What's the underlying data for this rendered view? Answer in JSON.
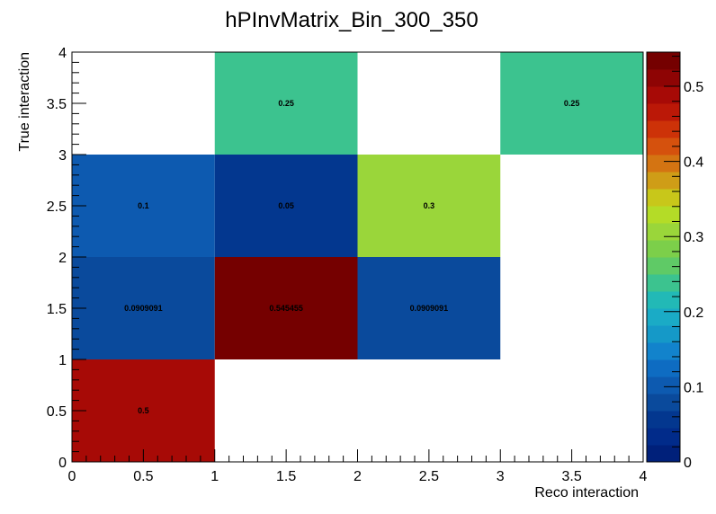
{
  "chart_data": {
    "type": "heatmap",
    "title": "hPInvMatrix_Bin_300_350",
    "xlabel": "Reco interaction",
    "ylabel": "True interaction",
    "xlim": [
      0,
      4
    ],
    "ylim": [
      0,
      4
    ],
    "x_ticks": [
      "0",
      "0.5",
      "1",
      "1.5",
      "2",
      "2.5",
      "3",
      "3.5",
      "4"
    ],
    "y_ticks": [
      "0",
      "0.5",
      "1",
      "1.5",
      "2",
      "2.5",
      "3",
      "3.5",
      "4"
    ],
    "z_range": [
      0,
      0.545455
    ],
    "colorbar_ticks": [
      "0",
      "0.1",
      "0.2",
      "0.3",
      "0.4",
      "0.5"
    ],
    "cells": [
      {
        "x": [
          0,
          1
        ],
        "y": [
          0,
          1
        ],
        "value": 0.5,
        "label": "0.5"
      },
      {
        "x": [
          0,
          1
        ],
        "y": [
          1,
          2
        ],
        "value": 0.0909091,
        "label": "0.0909091"
      },
      {
        "x": [
          1,
          2
        ],
        "y": [
          1,
          2
        ],
        "value": 0.545455,
        "label": "0.545455"
      },
      {
        "x": [
          2,
          3
        ],
        "y": [
          1,
          2
        ],
        "value": 0.0909091,
        "label": "0.0909091"
      },
      {
        "x": [
          0,
          1
        ],
        "y": [
          2,
          3
        ],
        "value": 0.1,
        "label": "0.1"
      },
      {
        "x": [
          1,
          2
        ],
        "y": [
          2,
          3
        ],
        "value": 0.05,
        "label": "0.05"
      },
      {
        "x": [
          2,
          3
        ],
        "y": [
          2,
          3
        ],
        "value": 0.3,
        "label": "0.3"
      },
      {
        "x": [
          1,
          2
        ],
        "y": [
          3,
          4
        ],
        "value": 0.25,
        "label": "0.25"
      },
      {
        "x": [
          3,
          4
        ],
        "y": [
          3,
          4
        ],
        "value": 0.25,
        "label": "0.25"
      }
    ],
    "palette": [
      "#00207a",
      "#012b8a",
      "#03378f",
      "#0a4a9c",
      "#0d5ab0",
      "#0e6cc2",
      "#1283cc",
      "#1599c8",
      "#1aabc6",
      "#22b9b6",
      "#3cc38f",
      "#5fca66",
      "#7ccf4a",
      "#9ad63a",
      "#b4dc27",
      "#c8c71a",
      "#cf9d17",
      "#d47412",
      "#d5510d",
      "#cd3208",
      "#bb1807",
      "#a70a06",
      "#8e0404",
      "#750000"
    ]
  }
}
